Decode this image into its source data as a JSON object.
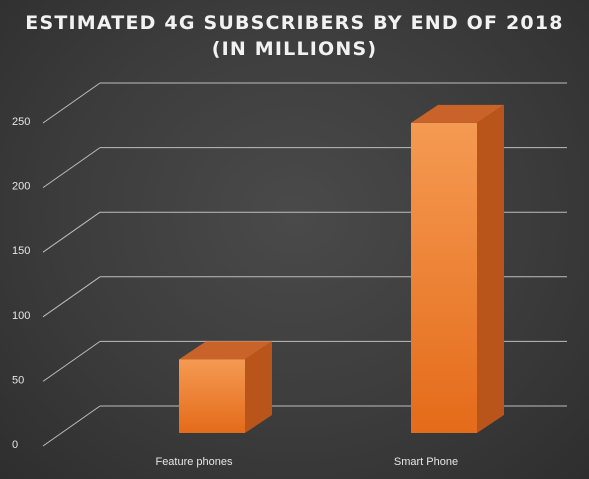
{
  "chart_data": {
    "type": "bar",
    "title_lines": [
      "ESTIMATED  4G SUBSCRIBERS  BY END OF 2018",
      "(IN MILLIONS)"
    ],
    "categories": [
      "Feature phones",
      "Smart Phone"
    ],
    "values": [
      57,
      240
    ],
    "ylim": [
      0,
      250
    ],
    "yticks": [
      "0",
      "50",
      "100",
      "150",
      "200",
      "250"
    ],
    "grid": true,
    "xlabel": "",
    "ylabel": "",
    "colors": {
      "bar_light": "#f59a52",
      "bar_dark": "#e46b1a",
      "bar_side": "#b9541a",
      "bar_top": "#c9632a",
      "grid": "#bdbdbd",
      "text": "#e6e6e6"
    }
  }
}
